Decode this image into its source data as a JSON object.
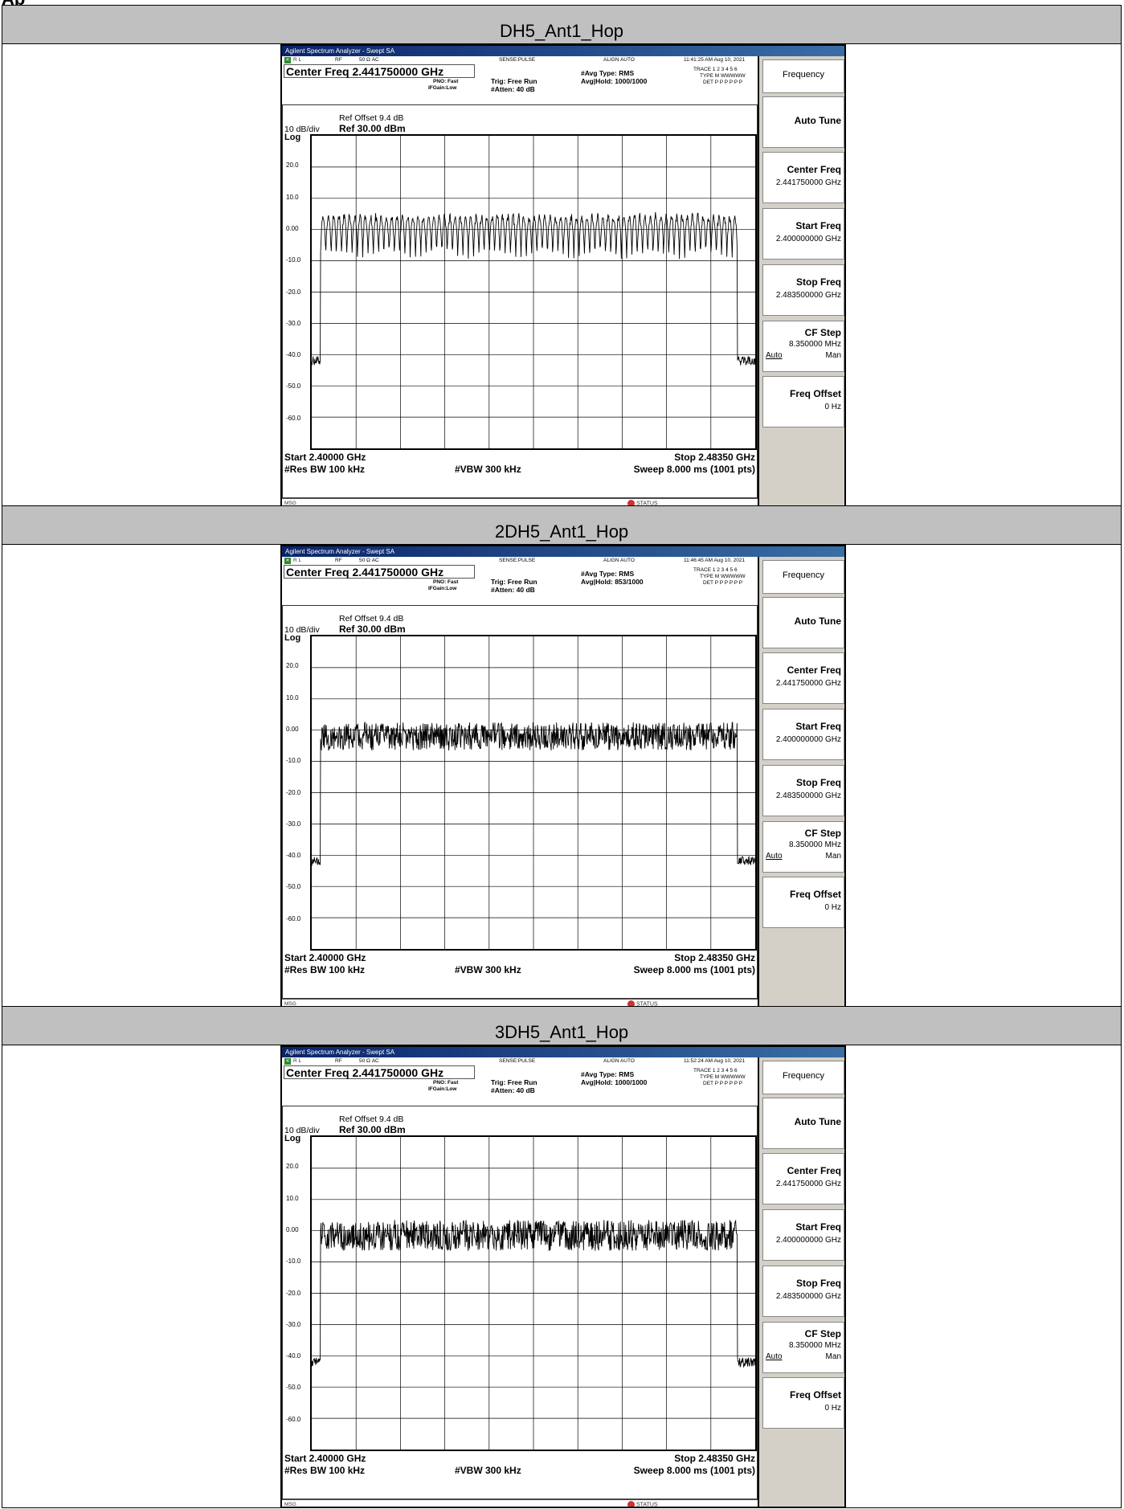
{
  "heading_fragment": "Ap",
  "sections": [
    {
      "header": "DH5_Ant1_Hop",
      "sa": {
        "window_title": "Agilent Spectrum Analyzer - Swept SA",
        "status_left": "R L",
        "status_rf": "RF",
        "status_imp": "50 Ω  AC",
        "status_sense": "SENSE:PULSE",
        "status_align": "ALIGN AUTO",
        "timestamp": "11:41:25 AM Aug 10, 2021",
        "center_freq": "Center Freq 2.441750000 GHz",
        "pno": "PNO: Fast",
        "ifgain": "IFGain:Low",
        "trig": "Trig: Free Run",
        "atten": "#Atten: 40 dB",
        "avg_type": "#Avg Type: RMS",
        "avg_hold": "Avg|Hold: 1000/1000",
        "trace_row": "TRACE 1 2 3 4 5 6",
        "type_row": "TYPE M WWWWW",
        "det_row": "DET P P P P P P",
        "ref_offset": "Ref Offset 9.4 dB",
        "scale": "10 dB/div",
        "ref": "Ref 30.00 dBm",
        "log": "Log",
        "start": "Start 2.40000 GHz",
        "stop": "Stop 2.48350 GHz",
        "rbw": "#Res BW 100 kHz",
        "vbw": "#VBW 300 kHz",
        "sweep": "Sweep  8.000 ms (1001 pts)",
        "msg": "MSG",
        "status": "STATUS"
      },
      "softkeys": {
        "menu": "Frequency",
        "auto_tune": "Auto Tune",
        "center_freq": "Center Freq",
        "center_val": "2.441750000 GHz",
        "start_freq": "Start Freq",
        "start_val": "2.400000000 GHz",
        "stop_freq": "Stop Freq",
        "stop_val": "2.483500000 GHz",
        "cf_step": "CF Step",
        "cf_val": "8.350000 MHz",
        "auto": "Auto",
        "man": "Man",
        "freq_offset": "Freq Offset",
        "offset_val": "0 Hz"
      }
    },
    {
      "header": "2DH5_Ant1_Hop",
      "sa": {
        "window_title": "Agilent Spectrum Analyzer - Swept SA",
        "status_left": "R L",
        "status_rf": "RF",
        "status_imp": "50 Ω  AC",
        "status_sense": "SENSE:PULSE",
        "status_align": "ALIGN AUTO",
        "timestamp": "11:46:45 AM Aug 10, 2021",
        "center_freq": "Center Freq 2.441750000 GHz",
        "pno": "PNO: Fast",
        "ifgain": "IFGain:Low",
        "trig": "Trig: Free Run",
        "atten": "#Atten: 40 dB",
        "avg_type": "#Avg Type: RMS",
        "avg_hold": "Avg|Hold: 853/1000",
        "trace_row": "TRACE 1 2 3 4 5 6",
        "type_row": "TYPE M WWWWW",
        "det_row": "DET P P P P P P",
        "ref_offset": "Ref Offset 9.4 dB",
        "scale": "10 dB/div",
        "ref": "Ref 30.00 dBm",
        "log": "Log",
        "start": "Start 2.40000 GHz",
        "stop": "Stop 2.48350 GHz",
        "rbw": "#Res BW 100 kHz",
        "vbw": "#VBW 300 kHz",
        "sweep": "Sweep  8.000 ms (1001 pts)",
        "msg": "MSG",
        "status": "STATUS"
      },
      "softkeys": {
        "menu": "Frequency",
        "auto_tune": "Auto Tune",
        "center_freq": "Center Freq",
        "center_val": "2.441750000 GHz",
        "start_freq": "Start Freq",
        "start_val": "2.400000000 GHz",
        "stop_freq": "Stop Freq",
        "stop_val": "2.483500000 GHz",
        "cf_step": "CF Step",
        "cf_val": "8.350000 MHz",
        "auto": "Auto",
        "man": "Man",
        "freq_offset": "Freq Offset",
        "offset_val": "0 Hz"
      }
    },
    {
      "header": "3DH5_Ant1_Hop",
      "sa": {
        "window_title": "Agilent Spectrum Analyzer - Swept SA",
        "status_left": "R L",
        "status_rf": "RF",
        "status_imp": "50 Ω  AC",
        "status_sense": "SENSE:PULSE",
        "status_align": "ALIGN AUTO",
        "timestamp": "11:52:24 AM Aug 10, 2021",
        "center_freq": "Center Freq 2.441750000 GHz",
        "pno": "PNO: Fast",
        "ifgain": "IFGain:Low",
        "trig": "Trig: Free Run",
        "atten": "#Atten: 40 dB",
        "avg_type": "#Avg Type: RMS",
        "avg_hold": "Avg|Hold: 1000/1000",
        "trace_row": "TRACE 1 2 3 4 5 6",
        "type_row": "TYPE M WWWWW",
        "det_row": "DET P P P P P P",
        "ref_offset": "Ref Offset 9.4 dB",
        "scale": "10 dB/div",
        "ref": "Ref 30.00 dBm",
        "log": "Log",
        "start": "Start 2.40000 GHz",
        "stop": "Stop 2.48350 GHz",
        "rbw": "#Res BW 100 kHz",
        "vbw": "#VBW 300 kHz",
        "sweep": "Sweep  8.000 ms (1001 pts)",
        "msg": "MSG",
        "status": "STATUS"
      },
      "softkeys": {
        "menu": "Frequency",
        "auto_tune": "Auto Tune",
        "center_freq": "Center Freq",
        "center_val": "2.441750000 GHz",
        "start_freq": "Start Freq",
        "start_val": "2.400000000 GHz",
        "stop_freq": "Stop Freq",
        "stop_val": "2.483500000 GHz",
        "cf_step": "CF Step",
        "cf_val": "8.350000 MHz",
        "auto": "Auto",
        "man": "Man",
        "freq_offset": "Freq Offset",
        "offset_val": "0 Hz"
      }
    }
  ],
  "y_tick_labels": [
    "20.0",
    "10.0",
    "0.00",
    "-10.0",
    "-20.0",
    "-30.0",
    "-40.0",
    "-50.0",
    "-60.0"
  ],
  "chart_data": [
    {
      "type": "line",
      "xlim": [
        2.4,
        2.4835
      ],
      "ylim": [
        -70,
        30
      ],
      "grid": true,
      "x_unit": "GHz",
      "y_unit": "dBm",
      "band_edge_low": 2.40165,
      "band_edge_high": 2.48015,
      "in_band_level": [
        -10,
        6
      ],
      "out_band_level": -42,
      "hop_channels": 79
    },
    {
      "type": "line",
      "xlim": [
        2.4,
        2.4835
      ],
      "ylim": [
        -70,
        30
      ],
      "grid": true,
      "x_unit": "GHz",
      "y_unit": "dBm",
      "band_edge_low": 2.40165,
      "band_edge_high": 2.48015,
      "in_band_level": [
        -6,
        4
      ],
      "out_band_level": -42
    },
    {
      "type": "line",
      "xlim": [
        2.4,
        2.4835
      ],
      "ylim": [
        -70,
        30
      ],
      "grid": true,
      "x_unit": "GHz",
      "y_unit": "dBm",
      "band_edge_low": 2.40165,
      "band_edge_high": 2.48015,
      "in_band_level": [
        -6,
        5
      ],
      "out_band_level": -42
    }
  ],
  "colors": {
    "header_bg": "#c0c0c0",
    "window_bg": "#d4d0c8",
    "titlebar": "#0a246a",
    "trace": "#000000"
  }
}
